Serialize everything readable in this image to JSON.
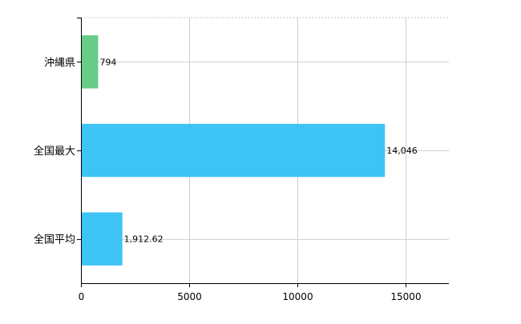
{
  "chart_data": {
    "type": "bar",
    "orientation": "horizontal",
    "categories": [
      "沖縄県",
      "全国最大",
      "全国平均"
    ],
    "values": [
      794,
      14046,
      1912.62
    ],
    "value_labels": [
      "794",
      "14,046",
      "1,912.62"
    ],
    "bar_colors": [
      "#66cc88",
      "#3ec3f5",
      "#3ec3f5"
    ],
    "xlim": [
      0,
      17000
    ],
    "xticks": [
      0,
      5000,
      10000,
      15000
    ],
    "xtick_labels": [
      "0",
      "5000",
      "10000",
      "15000"
    ],
    "grid": true,
    "title": "",
    "xlabel": "",
    "ylabel": "",
    "legend": "none"
  }
}
